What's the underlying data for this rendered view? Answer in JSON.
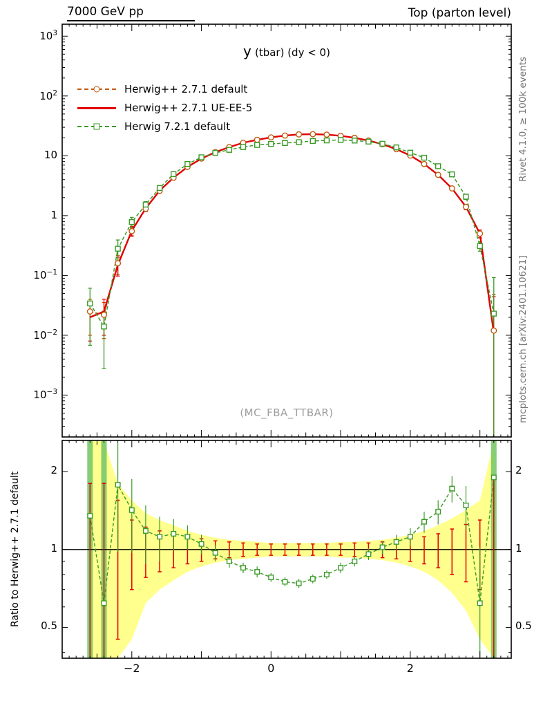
{
  "header": {
    "left": "7000 GeV pp",
    "right": "Top (parton level)"
  },
  "title": {
    "lead": "y",
    "rest": "(tbar) (dy < 0)"
  },
  "watermark": "(MC_FBA_TTBAR)",
  "side_labels": {
    "rivet": "Rivet 4.1.0, ≥ 100k events",
    "mcplots": "mcplots.cern.ch [arXiv:2401.10621]"
  },
  "ratio_axis": {
    "label": "Ratio to Herwig++ 2.7.1 default"
  },
  "chart_data": {
    "type": "line",
    "title": "y (tbar) (dy < 0)",
    "main_yscale": "log",
    "ratio_yscale": "log",
    "xlim": [
      -3.0,
      3.45
    ],
    "main_ylim_exp": [
      -3.7,
      3.2
    ],
    "main_ytick_exps": [
      3,
      2,
      1,
      0,
      -1,
      -2,
      -3
    ],
    "ratio_ylim": [
      0.38,
      2.64
    ],
    "ratio_yticks": [
      0.5,
      1,
      2
    ],
    "ratio_ytick_labels": [
      "0.5",
      "1",
      "2"
    ],
    "ratio_yticks_minor": [
      0.4,
      0.6,
      0.7,
      0.8,
      0.9
    ],
    "x_ticks_major": [
      -2,
      0,
      2
    ],
    "x_tick_labels": [
      "−2",
      "0",
      "2"
    ],
    "x": [
      -2.6,
      -2.4,
      -2.2,
      -2.0,
      -1.8,
      -1.6,
      -1.4,
      -1.2,
      -1.0,
      -0.8,
      -0.6,
      -0.4,
      -0.2,
      0.0,
      0.2,
      0.4,
      0.6,
      0.8,
      1.0,
      1.2,
      1.4,
      1.6,
      1.8,
      2.0,
      2.2,
      2.4,
      2.6,
      2.8,
      3.0,
      3.2
    ],
    "series": [
      {
        "name": "Herwig++ 2.7.1 default",
        "color": "#c05a0e",
        "marker": "circle",
        "line": "dashed",
        "values": [
          0.025,
          0.022,
          0.16,
          0.55,
          1.3,
          2.6,
          4.3,
          6.5,
          9.0,
          11.5,
          14.0,
          16.5,
          18.5,
          20.3,
          21.8,
          22.8,
          23.0,
          22.6,
          21.6,
          20.0,
          18.0,
          15.6,
          12.9,
          10.1,
          7.3,
          4.8,
          2.85,
          1.4,
          0.5,
          0.012
        ],
        "err_frac": [
          0.6,
          0.6,
          0.35,
          0.18,
          0.1,
          0.07,
          0.05,
          0.04,
          0.03,
          0.02,
          0.02,
          0.02,
          0.02,
          0.02,
          0.02,
          0.02,
          0.02,
          0.02,
          0.02,
          0.02,
          0.02,
          0.02,
          0.03,
          0.03,
          0.04,
          0.05,
          0.07,
          0.1,
          0.15,
          3
        ]
      },
      {
        "name": "Herwig++ 2.7.1 UE-EE-5",
        "color": "#e10000",
        "marker": "none",
        "line": "solid",
        "values": [
          0.02,
          0.025,
          0.15,
          0.56,
          1.32,
          2.62,
          4.32,
          6.5,
          9.0,
          11.5,
          14.0,
          16.5,
          18.5,
          20.3,
          21.8,
          22.8,
          23.0,
          22.6,
          21.6,
          20.0,
          18.0,
          15.6,
          12.9,
          10.1,
          7.3,
          4.8,
          2.85,
          1.4,
          0.5,
          0.011
        ],
        "err_frac": [
          0.6,
          0.6,
          0.35,
          0.18,
          0.1,
          0.07,
          0.05,
          0.04,
          0.03,
          0.02,
          0.02,
          0.02,
          0.02,
          0.02,
          0.02,
          0.02,
          0.02,
          0.02,
          0.02,
          0.02,
          0.02,
          0.02,
          0.03,
          0.03,
          0.04,
          0.05,
          0.07,
          0.1,
          0.15,
          3
        ]
      },
      {
        "name": "Herwig 7.2.1 default",
        "color": "#3a9b27",
        "marker": "square",
        "line": "dashed",
        "values": [
          0.034,
          0.014,
          0.28,
          0.78,
          1.53,
          2.9,
          4.95,
          7.3,
          9.45,
          11.2,
          12.6,
          14.0,
          15.2,
          15.8,
          16.4,
          16.9,
          17.7,
          18.1,
          18.4,
          18.0,
          17.3,
          15.9,
          13.8,
          11.3,
          9.3,
          6.7,
          4.9,
          2.07,
          0.31,
          0.023
        ],
        "err_frac": [
          0.8,
          0.8,
          0.4,
          0.2,
          0.12,
          0.08,
          0.06,
          0.04,
          0.03,
          0.02,
          0.02,
          0.02,
          0.02,
          0.02,
          0.02,
          0.02,
          0.02,
          0.02,
          0.02,
          0.02,
          0.02,
          0.02,
          0.03,
          0.03,
          0.04,
          0.05,
          0.07,
          0.1,
          0.18,
          3
        ]
      }
    ],
    "ratio": {
      "band_color": "#ffff8e",
      "big_error_color": "#79c96a",
      "band_halfwidth": [
        3,
        3,
        0.8,
        0.55,
        0.38,
        0.3,
        0.24,
        0.18,
        0.14,
        0.11,
        0.09,
        0.08,
        0.07,
        0.06,
        0.06,
        0.06,
        0.06,
        0.06,
        0.07,
        0.07,
        0.08,
        0.09,
        0.11,
        0.14,
        0.18,
        0.24,
        0.32,
        0.42,
        0.55,
        3
      ],
      "red_err": [
        0.8,
        0.8,
        0.55,
        0.3,
        0.22,
        0.18,
        0.15,
        0.12,
        0.1,
        0.08,
        0.07,
        0.06,
        0.05,
        0.05,
        0.05,
        0.05,
        0.05,
        0.05,
        0.05,
        0.06,
        0.06,
        0.07,
        0.08,
        0.1,
        0.12,
        0.15,
        0.2,
        0.25,
        0.3,
        0.9
      ],
      "green_values": [
        1.35,
        0.62,
        1.78,
        1.42,
        1.18,
        1.12,
        1.15,
        1.12,
        1.05,
        0.97,
        0.9,
        0.85,
        0.82,
        0.78,
        0.75,
        0.74,
        0.77,
        0.8,
        0.85,
        0.9,
        0.96,
        1.02,
        1.07,
        1.12,
        1.28,
        1.4,
        1.72,
        1.48,
        0.62,
        1.9
      ],
      "green_err": [
        3,
        3,
        0.8,
        0.45,
        0.3,
        0.22,
        0.16,
        0.12,
        0.09,
        0.07,
        0.05,
        0.04,
        0.04,
        0.03,
        0.03,
        0.03,
        0.03,
        0.03,
        0.04,
        0.04,
        0.05,
        0.06,
        0.07,
        0.09,
        0.12,
        0.15,
        0.2,
        0.28,
        0.4,
        3
      ]
    }
  }
}
